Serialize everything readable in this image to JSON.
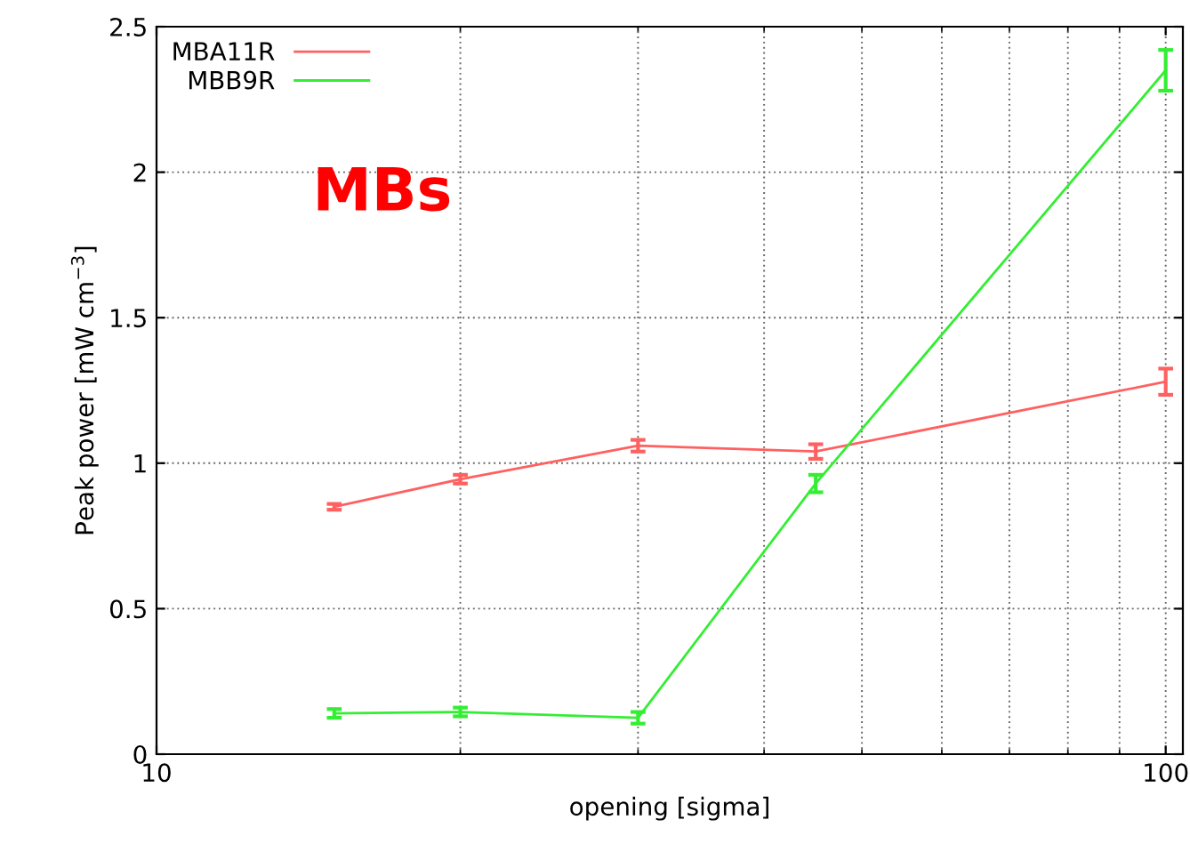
{
  "chart_data": {
    "type": "line",
    "xlabel": "opening [sigma]",
    "ylabel": "Peak power [mW cm$^{−3}$]",
    "annotations": [
      "MBs"
    ],
    "log": "x",
    "xlim": [
      10,
      104
    ],
    "xticks": [
      10,
      100
    ],
    "ylim": [
      0,
      2.5
    ],
    "yticks": [
      0,
      0.5,
      1,
      1.5,
      2,
      2.5
    ],
    "grid": true,
    "legend": "top left",
    "marker": "none",
    "line_style": "solid",
    "series": [
      {
        "name": "MBA11R",
        "color": "#ff6060",
        "x": [
          15,
          20,
          30,
          45,
          100
        ],
        "values": [
          0.85,
          0.945,
          1.06,
          1.04,
          1.28
        ],
        "errors": [
          0.01,
          0.015,
          0.02,
          0.025,
          0.045
        ]
      },
      {
        "name": "MBB9R",
        "color": "#33ee33",
        "x": [
          15,
          20,
          30,
          45,
          100
        ],
        "values": [
          0.14,
          0.145,
          0.125,
          0.93,
          2.35
        ],
        "errors": [
          0.015,
          0.015,
          0.02,
          0.03,
          0.07
        ]
      }
    ]
  }
}
